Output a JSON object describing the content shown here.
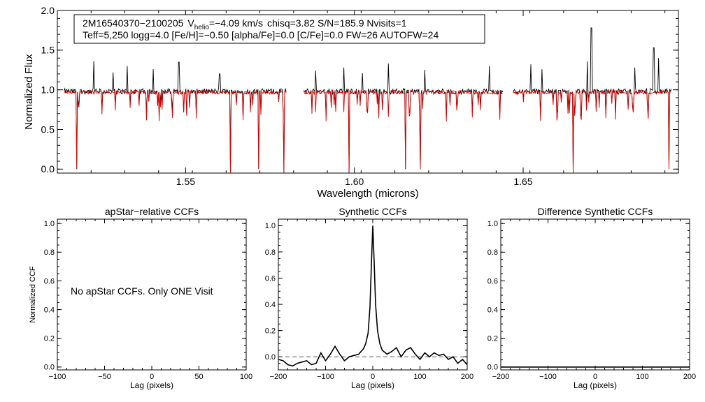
{
  "chart_data": [
    {
      "type": "line",
      "header": {
        "line1_star": "2M16540370−2100205",
        "line1_v": "V",
        "line1_vsub": "helio",
        "line1_vval": "=−4.09 km/s",
        "line1_rest": "chisq=3.82  S/N=185.9  Nvisits=1",
        "line2": "Teff=5,250 logg=4.0 [Fe/H]=−0.50 [alpha/Fe]=0.0 [C/Fe]=0.0 FW=26 AUTOFW=24"
      },
      "xlabel": "Wavelength (microns)",
      "ylabel": "Normalized Flux",
      "xlim": [
        1.512,
        1.696
      ],
      "ylim": [
        -0.05,
        2.0
      ],
      "xticks": [
        "1.55",
        "1.60",
        "1.65"
      ],
      "xtick_values": [
        1.55,
        1.6,
        1.65
      ],
      "yticks": [
        "0.0",
        "0.5",
        "1.0",
        "1.5",
        "2.0"
      ],
      "ytick_values": [
        0.0,
        0.5,
        1.0,
        1.5,
        2.0
      ],
      "chips": [
        [
          1.514,
          1.58
        ],
        [
          1.585,
          1.644
        ],
        [
          1.647,
          1.694
        ]
      ],
      "series": [
        {
          "color": "#000000"
        },
        {
          "color": "#dd0000"
        }
      ],
      "emission_spikes": [
        {
          "x": 1.5228,
          "y": 1.36
        },
        {
          "x": 1.5285,
          "y": 1.22
        },
        {
          "x": 1.5327,
          "y": 1.3
        },
        {
          "x": 1.5404,
          "y": 1.26
        },
        {
          "x": 1.548,
          "y": 1.35
        },
        {
          "x": 1.5601,
          "y": 1.2
        },
        {
          "x": 1.5886,
          "y": 1.24
        },
        {
          "x": 1.5968,
          "y": 1.28
        },
        {
          "x": 1.6024,
          "y": 1.21
        },
        {
          "x": 1.61,
          "y": 1.33
        },
        {
          "x": 1.6208,
          "y": 1.25
        },
        {
          "x": 1.64,
          "y": 1.3
        },
        {
          "x": 1.6522,
          "y": 1.32
        },
        {
          "x": 1.6555,
          "y": 1.26
        },
        {
          "x": 1.669,
          "y": 1.36
        },
        {
          "x": 1.6702,
          "y": 1.78
        },
        {
          "x": 1.683,
          "y": 1.28
        },
        {
          "x": 1.6887,
          "y": 1.53
        },
        {
          "x": 1.6902,
          "y": 1.4
        }
      ],
      "absorption_dips": [
        {
          "x": 1.5177,
          "y": 0.0
        },
        {
          "x": 1.5632,
          "y": -0.05
        },
        {
          "x": 1.5717,
          "y": 0.0
        },
        {
          "x": 1.5792,
          "y": -0.05
        },
        {
          "x": 1.5803,
          "y": -0.05
        },
        {
          "x": 1.5984,
          "y": -0.05
        },
        {
          "x": 1.6151,
          "y": 0.0
        },
        {
          "x": 1.6195,
          "y": 0.0
        },
        {
          "x": 1.6648,
          "y": -0.05
        },
        {
          "x": 1.6932,
          "y": 0.0
        }
      ]
    },
    {
      "type": "line",
      "title": "apStar−relative CCFs",
      "xlabel": "Lag (pixels)",
      "ylabel": "Normalized CCF",
      "xlim": [
        -100,
        100
      ],
      "ylim": [
        -0.02,
        1.03
      ],
      "xticks": [
        "−100",
        "−50",
        "0",
        "50",
        "100"
      ],
      "xtick_values": [
        -100,
        -50,
        0,
        50,
        100
      ],
      "yticks": [
        "0.0",
        "0.2",
        "0.4",
        "0.6",
        "0.8",
        "1.0"
      ],
      "ytick_values": [
        0.0,
        0.2,
        0.4,
        0.6,
        0.8,
        1.0
      ],
      "annotation": "No apStar CCFs.  Only ONE Visit",
      "series": []
    },
    {
      "type": "line",
      "title": "Synthetic CCFs",
      "xlabel": "Lag (pixels)",
      "xlim": [
        -200,
        200
      ],
      "ylim": [
        -0.1,
        1.05
      ],
      "xticks": [
        "−200",
        "−100",
        "0",
        "100",
        "200"
      ],
      "xtick_values": [
        -200,
        -100,
        0,
        100,
        200
      ],
      "yticks": [
        "0.0",
        "0.2",
        "0.4",
        "0.6",
        "0.8",
        "1.0"
      ],
      "ytick_values": [
        0.0,
        0.2,
        0.4,
        0.6,
        0.8,
        1.0
      ],
      "dashed_reference_y": 0.0,
      "series": [
        {
          "color": "#000000",
          "x": [
            -200,
            -190,
            -180,
            -170,
            -160,
            -150,
            -140,
            -130,
            -120,
            -110,
            -100,
            -90,
            -80,
            -70,
            -60,
            -50,
            -40,
            -30,
            -20,
            -15,
            -10,
            -6,
            -3,
            0,
            3,
            6,
            10,
            15,
            20,
            30,
            40,
            50,
            60,
            70,
            80,
            90,
            100,
            110,
            120,
            130,
            140,
            150,
            160,
            170,
            180,
            190,
            200
          ],
          "y": [
            -0.02,
            -0.03,
            -0.06,
            -0.07,
            -0.05,
            -0.04,
            -0.03,
            -0.06,
            -0.05,
            0.03,
            -0.03,
            0.02,
            0.08,
            0.02,
            -0.03,
            0.0,
            0.01,
            0.02,
            0.06,
            0.1,
            0.18,
            0.38,
            0.7,
            1.0,
            0.72,
            0.4,
            0.2,
            0.1,
            0.05,
            0.02,
            0.04,
            0.07,
            0.0,
            0.05,
            0.07,
            0.02,
            -0.02,
            0.03,
            0.0,
            0.03,
            0.01,
            0.02,
            -0.02,
            0.0,
            -0.05,
            -0.02,
            -0.06
          ]
        }
      ]
    },
    {
      "type": "line",
      "title": "Difference Synthetic CCFs",
      "xlabel": "Lag (pixels)",
      "xlim": [
        -200,
        200
      ],
      "ylim": [
        -0.02,
        1.03
      ],
      "xticks": [
        "−200",
        "−100",
        "0",
        "100",
        "200"
      ],
      "xtick_values": [
        -200,
        -100,
        0,
        100,
        200
      ],
      "yticks": [
        "0.0",
        "0.2",
        "0.4",
        "0.6",
        "0.8",
        "1.0"
      ],
      "ytick_values": [
        0.0,
        0.2,
        0.4,
        0.6,
        0.8,
        1.0
      ],
      "series": [
        {
          "color": "#000000",
          "x": [
            -200,
            200
          ],
          "y": [
            0.0,
            0.0
          ]
        }
      ]
    }
  ]
}
